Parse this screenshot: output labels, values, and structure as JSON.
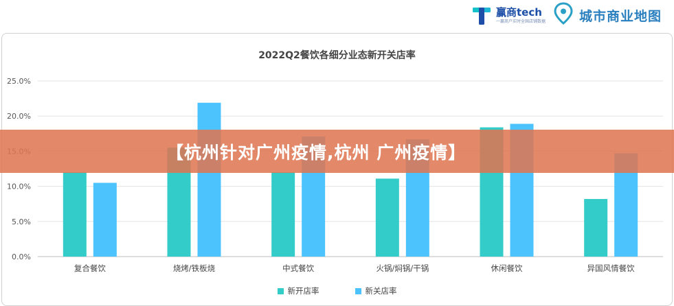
{
  "logos": {
    "brand_one": {
      "main": "赢商tech",
      "sub": "一赢商户实时全国店铺数据",
      "icon": "t-logo-icon"
    },
    "brand_two": {
      "text": "城市商业地图",
      "icon": "map-pin-icon"
    }
  },
  "banner": {
    "text": "【杭州针对广州疫情,杭州 广州疫情】"
  },
  "colors": {
    "open": "#34ccc9",
    "close": "#4dc3fd",
    "banner": "#de7450"
  },
  "chart_data": {
    "type": "bar",
    "title": "2022Q2餐饮各细分业态新开关店率",
    "xlabel": "",
    "ylabel": "",
    "categories": [
      "复合餐饮",
      "烧烤/铁板烧",
      "中式餐饮",
      "火锅/焖锅/干锅",
      "休闲餐饮",
      "异国风情餐饮"
    ],
    "series": [
      {
        "name": "新开店率",
        "values": [
          12.0,
          15.5,
          12.0,
          11.1,
          18.4,
          8.2
        ]
      },
      {
        "name": "新关店率",
        "values": [
          10.5,
          21.9,
          17.1,
          16.7,
          18.9,
          14.7
        ]
      }
    ],
    "yticks": [
      "0.0%",
      "5.0%",
      "10.0%",
      "15.0%",
      "20.0%",
      "25.0%"
    ],
    "ylim": [
      0,
      25
    ],
    "grid": true,
    "legend": "bottom"
  }
}
